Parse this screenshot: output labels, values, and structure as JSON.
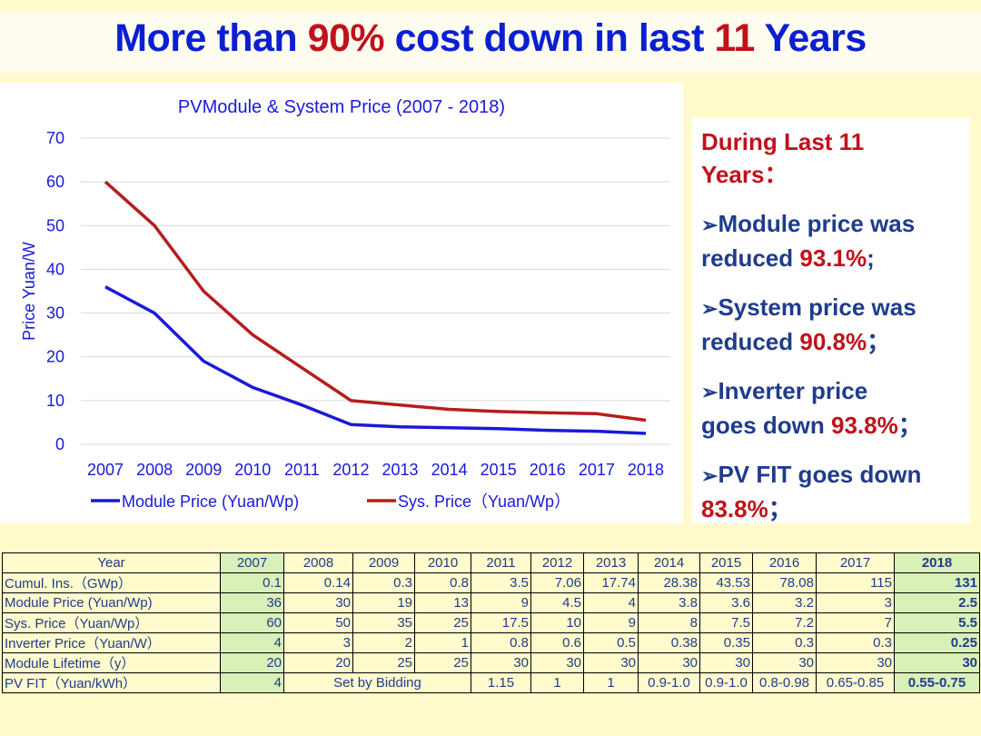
{
  "title": {
    "part1": "More than ",
    "pct": "90%",
    "part2": " cost down in last ",
    "years": "11",
    "part3": " Years"
  },
  "chart_data": {
    "type": "line",
    "title": "PVModule & System Price (2007 - 2018)",
    "ylabel": "Price Yuan/W",
    "xlabel": "",
    "categories": [
      "2007",
      "2008",
      "2009",
      "2010",
      "2011",
      "2012",
      "2013",
      "2014",
      "2015",
      "2016",
      "2017",
      "2018"
    ],
    "ylim": [
      0,
      70
    ],
    "yticks": [
      0,
      10,
      20,
      30,
      40,
      50,
      60,
      70
    ],
    "grid": true,
    "legend_position": "bottom",
    "series": [
      {
        "name": "Module Price (Yuan/Wp)",
        "color": "#1a1ad8",
        "values": [
          36,
          30,
          19,
          13,
          9,
          4.5,
          4,
          3.8,
          3.6,
          3.2,
          3,
          2.5
        ]
      },
      {
        "name": "Sys. Price（Yuan/Wp）",
        "color": "#b81c1c",
        "values": [
          60,
          50,
          35,
          25,
          17.5,
          10,
          9,
          8,
          7.5,
          7.2,
          7,
          5.5
        ]
      }
    ]
  },
  "side": {
    "heading1": "During Last 11",
    "heading2": "Years：",
    "items": [
      {
        "arrow": "➢",
        "t1": "Module price was",
        "t2": "reduced ",
        "v": "93.1%",
        "end": ";"
      },
      {
        "arrow": "➢",
        "t1": "System price was",
        "t2": "reduced ",
        "v": "90.8%",
        "end": "；"
      },
      {
        "arrow": "➢",
        "t1": "Inverter price",
        "t2": "goes down ",
        "v": "93.8%",
        "end": "；"
      },
      {
        "arrow": "➢",
        "t1": "PV FIT goes down",
        "t2": "",
        "v": "83.8%",
        "end": "；"
      }
    ]
  },
  "table": {
    "header": [
      "Year",
      "2007",
      "2008",
      "2009",
      "2010",
      "2011",
      "2012",
      "2013",
      "2014",
      "2015",
      "2016",
      "2017",
      "2018"
    ],
    "rows": [
      [
        "Cumul. Ins.（GWp）",
        "0.1",
        "0.14",
        "0.3",
        "0.8",
        "3.5",
        "7.06",
        "17.74",
        "28.38",
        "43.53",
        "78.08",
        "115",
        "131"
      ],
      [
        "Module Price (Yuan/Wp)",
        "36",
        "30",
        "19",
        "13",
        "9",
        "4.5",
        "4",
        "3.8",
        "3.6",
        "3.2",
        "3",
        "2.5"
      ],
      [
        "Sys. Price（Yuan/Wp）",
        "60",
        "50",
        "35",
        "25",
        "17.5",
        "10",
        "9",
        "8",
        "7.5",
        "7.2",
        "7",
        "5.5"
      ],
      [
        "Inverter Price（Yuan/W）",
        "4",
        "3",
        "2",
        "1",
        "0.8",
        "0.6",
        "0.5",
        "0.38",
        "0.35",
        "0.3",
        "0.3",
        "0.25"
      ],
      [
        "Module Lifetime（y）",
        "20",
        "20",
        "25",
        "25",
        "30",
        "30",
        "30",
        "30",
        "30",
        "30",
        "30",
        "30"
      ]
    ],
    "fit_row": {
      "label": "PV FIT（Yuan/kWh）",
      "y2007": "4",
      "bidding": "Set by Bidding",
      "y2011": "1.15",
      "y2012": "1",
      "y2013": "1",
      "y2014": "0.9-1.0",
      "y2015": "0.9-1.0",
      "y2016": "0.8-0.98",
      "y2017": "0.65-0.85",
      "y2018": "0.55-0.75"
    }
  }
}
